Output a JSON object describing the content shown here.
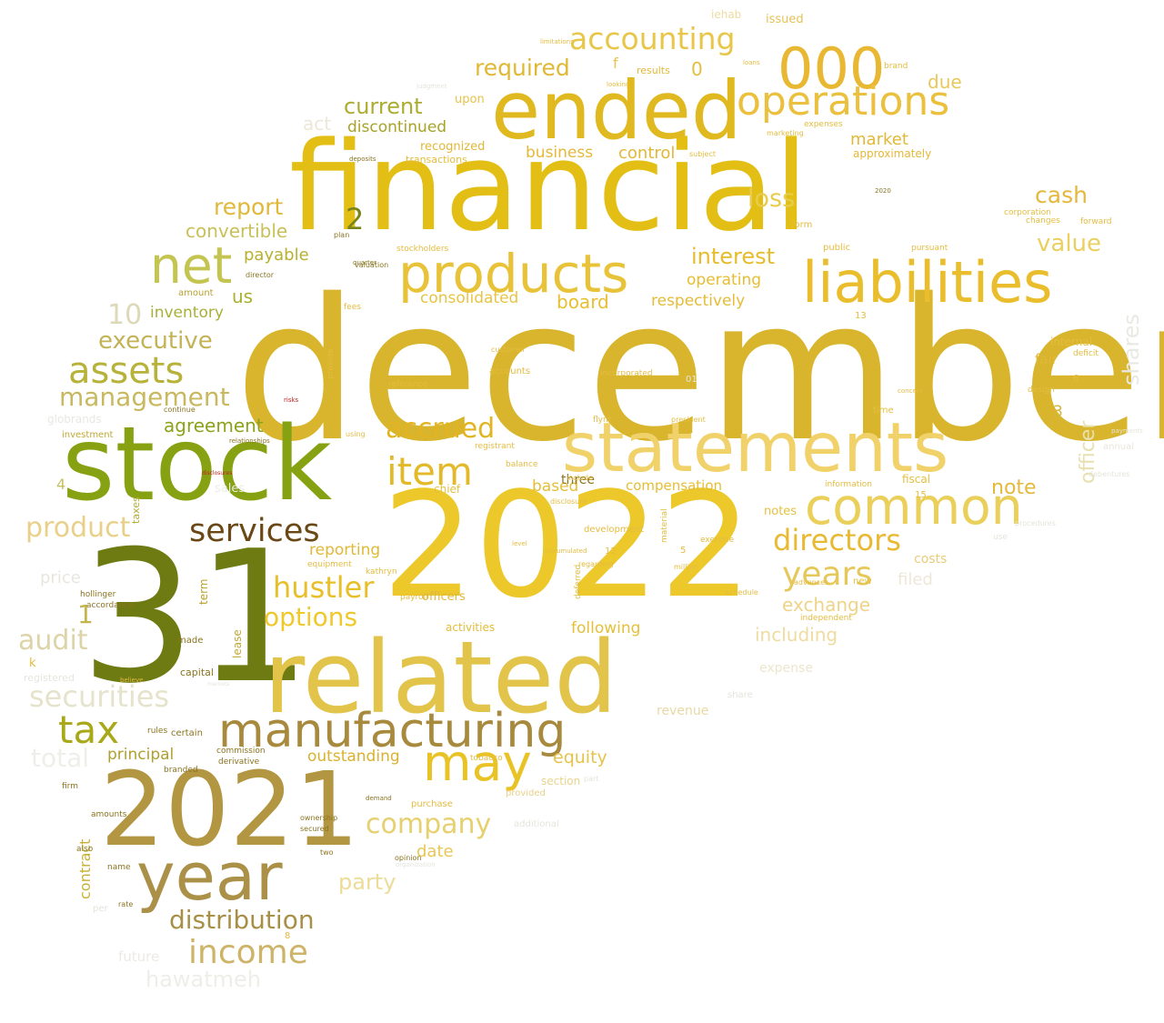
{
  "words": [
    {
      "text": "december",
      "color": "#d8b52c"
    },
    {
      "text": "financial",
      "color": "#e3bf16"
    },
    {
      "text": "2022",
      "color": "#ecc82a"
    },
    {
      "text": "31",
      "color": "#6e7a12"
    },
    {
      "text": "related",
      "color": "#e2c44a"
    },
    {
      "text": "stock",
      "color": "#86a212"
    },
    {
      "text": "2021",
      "color": "#b39642"
    },
    {
      "text": "statements",
      "color": "#f1d26a"
    },
    {
      "text": "ended",
      "color": "#e0b920"
    },
    {
      "text": "manufacturing",
      "color": "#a88a3e"
    },
    {
      "text": "products",
      "color": "#e8c33a"
    },
    {
      "text": "year",
      "color": "#ab9048"
    },
    {
      "text": "liabilities",
      "color": "#eabd2c"
    },
    {
      "text": "common",
      "color": "#ead05a"
    },
    {
      "text": "000",
      "color": "#e9b832"
    },
    {
      "text": "operations",
      "color": "#eac03e"
    },
    {
      "text": "net",
      "color": "#c4c450"
    },
    {
      "text": "accounting",
      "color": "#e8c64a"
    },
    {
      "text": "services",
      "color": "#6a4816"
    },
    {
      "text": "may",
      "color": "#e9c326"
    },
    {
      "text": "assets",
      "color": "#b6b23a"
    },
    {
      "text": "item",
      "color": "#e3b92a"
    },
    {
      "text": "income",
      "color": "#cdb468"
    },
    {
      "text": "tax",
      "color": "#a8a818"
    },
    {
      "text": "directors",
      "color": "#e8b932"
    },
    {
      "text": "years",
      "color": "#e6c85a"
    },
    {
      "text": "hustler",
      "color": "#e8bf28"
    },
    {
      "text": "management",
      "color": "#c8b860"
    },
    {
      "text": "securities",
      "color": "#e6e3cc"
    },
    {
      "text": "distribution",
      "color": "#a88f46"
    },
    {
      "text": "company",
      "color": "#e6d070"
    },
    {
      "text": "options",
      "color": "#efc82a"
    },
    {
      "text": "accrued",
      "color": "#e3b422"
    },
    {
      "text": "product",
      "color": "#e9d08a"
    },
    {
      "text": "audit",
      "color": "#dcd4a8"
    },
    {
      "text": "total",
      "color": "#eeeeea"
    },
    {
      "text": "executive",
      "color": "#c3b256"
    },
    {
      "text": "report",
      "color": "#e0b83a"
    },
    {
      "text": "loss",
      "color": "#e8cc50"
    },
    {
      "text": "cash",
      "color": "#e4b83c"
    },
    {
      "text": "value",
      "color": "#ead060"
    },
    {
      "text": "current",
      "color": "#acac30"
    },
    {
      "text": "required",
      "color": "#e0b834"
    },
    {
      "text": "interest",
      "color": "#e7bc2c"
    },
    {
      "text": "exchange",
      "color": "#eed488"
    },
    {
      "text": "including",
      "color": "#eedca0"
    },
    {
      "text": "party",
      "color": "#ecdc98"
    },
    {
      "text": "hawatmeh",
      "color": "#eeeee8"
    },
    {
      "text": "shares",
      "color": "#e9e9e4"
    },
    {
      "text": "officer",
      "color": "#e8e0b0"
    },
    {
      "text": "note",
      "color": "#e4ba3c"
    },
    {
      "text": "10",
      "color": "#ddd8b8"
    },
    {
      "text": "agreement",
      "color": "#8ca21c"
    },
    {
      "text": "convertible",
      "color": "#c8c058"
    },
    {
      "text": "consolidated",
      "color": "#e8c444"
    },
    {
      "text": "operating",
      "color": "#e7bd30"
    },
    {
      "text": "market",
      "color": "#e2b838"
    },
    {
      "text": "payable",
      "color": "#b8b030"
    },
    {
      "text": "board",
      "color": "#e8bf30"
    },
    {
      "text": "equity",
      "color": "#e6c34c"
    },
    {
      "text": "control",
      "color": "#e0b838"
    },
    {
      "text": "business",
      "color": "#e3b938"
    },
    {
      "text": "discontinued",
      "color": "#a8a228"
    },
    {
      "text": "outstanding",
      "color": "#d8b230"
    },
    {
      "text": "reporting",
      "color": "#e2b838"
    },
    {
      "text": "price",
      "color": "#e8e6dc"
    },
    {
      "text": "respectively",
      "color": "#e4bc38"
    },
    {
      "text": "compensation",
      "color": "#e6bd34"
    },
    {
      "text": "inventory",
      "color": "#a8b038"
    },
    {
      "text": "principal",
      "color": "#b0a030"
    },
    {
      "text": "following",
      "color": "#e4c03a"
    },
    {
      "text": "date",
      "color": "#e8c854"
    },
    {
      "text": "due",
      "color": "#e8c85c"
    },
    {
      "text": "act",
      "color": "#ece8d8"
    },
    {
      "text": "contract",
      "color": "#c8b030"
    },
    {
      "text": "us",
      "color": "#aab02c"
    },
    {
      "text": "filed",
      "color": "#ece8d8"
    },
    {
      "text": "costs",
      "color": "#e8cc78"
    },
    {
      "text": "notes",
      "color": "#e6c040"
    },
    {
      "text": "fair",
      "color": "#e0b838"
    },
    {
      "text": "based",
      "color": "#e4be36"
    },
    {
      "text": "expense",
      "color": "#ece6cc"
    },
    {
      "text": "revenue",
      "color": "#e8d8a4"
    },
    {
      "text": "2",
      "color": "#7a8418"
    },
    {
      "text": "3",
      "color": "#d4b43c"
    },
    {
      "text": "1",
      "color": "#c4b44c"
    },
    {
      "text": "4",
      "color": "#c8c060"
    },
    {
      "text": "0",
      "color": "#e6be3e"
    },
    {
      "text": "f",
      "color": "#e8c44a"
    },
    {
      "text": "recognized",
      "color": "#e0b838"
    },
    {
      "text": "transactions",
      "color": "#e4bc3c"
    },
    {
      "text": "approximately",
      "color": "#e4b838"
    },
    {
      "text": "internal",
      "color": "#e4bc3e"
    },
    {
      "text": "chief",
      "color": "#e4c040"
    },
    {
      "text": "term",
      "color": "#b8a028"
    },
    {
      "text": "lease",
      "color": "#c0a838"
    },
    {
      "text": "taxes",
      "color": "#b4ac30"
    },
    {
      "text": "officers",
      "color": "#e0b83c"
    },
    {
      "text": "activities",
      "color": "#e3bc38"
    },
    {
      "text": "upon",
      "color": "#e6c24a"
    },
    {
      "text": "results",
      "color": "#e4b838"
    },
    {
      "text": "issued",
      "color": "#e4c258"
    },
    {
      "text": "iehab",
      "color": "#eedca0"
    },
    {
      "text": "section",
      "color": "#e8d48a"
    },
    {
      "text": "provided",
      "color": "#e8d088"
    },
    {
      "text": "globrands",
      "color": "#e8e8e2"
    },
    {
      "text": "registered",
      "color": "#e6e6de"
    },
    {
      "text": "sales",
      "color": "#ecece6"
    },
    {
      "text": "future",
      "color": "#eeeae0"
    },
    {
      "text": "annual",
      "color": "#e8e6dc"
    },
    {
      "text": "public",
      "color": "#e4bc40"
    },
    {
      "text": "form",
      "color": "#e4bc40"
    },
    {
      "text": "design",
      "color": "#e4bc40"
    },
    {
      "text": "time",
      "color": "#e4c040"
    },
    {
      "text": "fiscal",
      "color": "#e4c040"
    },
    {
      "text": "new",
      "color": "#e4c040"
    },
    {
      "text": "investment",
      "color": "#c0a838"
    },
    {
      "text": "amount",
      "color": "#b8a030"
    },
    {
      "text": "capital",
      "color": "#8a7420"
    },
    {
      "text": "certain",
      "color": "#8a7420"
    },
    {
      "text": "made",
      "color": "#8a7420"
    },
    {
      "text": "hollinger",
      "color": "#8a7420"
    },
    {
      "text": "accordance",
      "color": "#8a7420"
    },
    {
      "text": "firm",
      "color": "#8a7420"
    },
    {
      "text": "commission",
      "color": "#8a7420"
    },
    {
      "text": "derivative",
      "color": "#8a7420"
    },
    {
      "text": "rules",
      "color": "#8a7420"
    },
    {
      "text": "branded",
      "color": "#8a7420"
    },
    {
      "text": "amounts",
      "color": "#8a7420"
    },
    {
      "text": "name",
      "color": "#8a7420"
    },
    {
      "text": "also",
      "color": "#8a7420"
    },
    {
      "text": "per",
      "color": "#e4e4dc"
    },
    {
      "text": "rate",
      "color": "#8a7420"
    },
    {
      "text": "debentures",
      "color": "#e4e4dc"
    },
    {
      "text": "purchase",
      "color": "#e4bc40"
    },
    {
      "text": "ownership",
      "color": "#8a7420"
    },
    {
      "text": "secured",
      "color": "#8a7420"
    },
    {
      "text": "two",
      "color": "#8a7420"
    },
    {
      "text": "opinion",
      "color": "#8a7420"
    },
    {
      "text": "tobacco",
      "color": "#e4bc40"
    },
    {
      "text": "demand",
      "color": "#8a7420"
    },
    {
      "text": "kathryn",
      "color": "#e4bc40"
    },
    {
      "text": "payroll",
      "color": "#e4bc40"
    },
    {
      "text": "equipment",
      "color": "#e4bc40"
    },
    {
      "text": "regarding",
      "color": "#e4bc40"
    },
    {
      "text": "schedule",
      "color": "#e4bc40"
    },
    {
      "text": "independent",
      "color": "#e4bc40"
    },
    {
      "text": "advances",
      "color": "#e4bc40"
    },
    {
      "text": "exercise",
      "color": "#e4bc40"
    },
    {
      "text": "million",
      "color": "#e4bc40"
    },
    {
      "text": "development",
      "color": "#e4bc40"
    },
    {
      "text": "deferred",
      "color": "#e4bc40"
    },
    {
      "text": "material",
      "color": "#e4bc40"
    },
    {
      "text": "disclosure",
      "color": "#e4bc40"
    },
    {
      "text": "flynt",
      "color": "#e4bc40"
    },
    {
      "text": "president",
      "color": "#e4bc40"
    },
    {
      "text": "information",
      "color": "#e4bc40"
    },
    {
      "text": "concern",
      "color": "#e4bc40"
    },
    {
      "text": "registrant",
      "color": "#e4bc40"
    },
    {
      "text": "balance",
      "color": "#e4bc40"
    },
    {
      "text": "accounts",
      "color": "#e4bc40"
    },
    {
      "text": "reference",
      "color": "#e4bc40"
    },
    {
      "text": "incorporated",
      "color": "#e4bc40"
    },
    {
      "text": "customer",
      "color": "#e4bc40"
    },
    {
      "text": "provide",
      "color": "#e4bc40"
    },
    {
      "text": "using",
      "color": "#e4bc40"
    },
    {
      "text": "fees",
      "color": "#e4bc40"
    },
    {
      "text": "director",
      "color": "#8a7420"
    },
    {
      "text": "valuation",
      "color": "#8a7420"
    },
    {
      "text": "stockholders",
      "color": "#e4bc40"
    },
    {
      "text": "pursuant",
      "color": "#e4bc40"
    },
    {
      "text": "corporation",
      "color": "#e4bc40"
    },
    {
      "text": "changes",
      "color": "#e4bc40"
    },
    {
      "text": "forward",
      "color": "#e4bc40"
    },
    {
      "text": "deficit",
      "color": "#e4bc40"
    },
    {
      "text": "expenses",
      "color": "#e4bc40"
    },
    {
      "text": "marketing",
      "color": "#e4bc40"
    },
    {
      "text": "subject",
      "color": "#e4bc40"
    },
    {
      "text": "brand",
      "color": "#e4bc40"
    },
    {
      "text": "loans",
      "color": "#e4bc40"
    },
    {
      "text": "looking",
      "color": "#e4bc40"
    },
    {
      "text": "plan",
      "color": "#8a7420"
    },
    {
      "text": "quarter",
      "color": "#8a7420"
    },
    {
      "text": "deposits",
      "color": "#8a7420"
    },
    {
      "text": "continue",
      "color": "#8a7420"
    },
    {
      "text": "relationships",
      "color": "#8a7420"
    },
    {
      "text": "risks",
      "color": "#c02020"
    },
    {
      "text": "disclosures",
      "color": "#c02020"
    },
    {
      "text": "markets",
      "color": "#e4e4dc"
    },
    {
      "text": "payments",
      "color": "#e4e4dc"
    },
    {
      "text": "procedures",
      "color": "#e4e4dc"
    },
    {
      "text": "use",
      "color": "#e4e4dc"
    },
    {
      "text": "share",
      "color": "#e4e4dc"
    },
    {
      "text": "part",
      "color": "#e4e4dc"
    },
    {
      "text": "additional",
      "color": "#e4e4dc"
    },
    {
      "text": "8",
      "color": "#e4bc40"
    },
    {
      "text": "6",
      "color": "#e4bc40"
    },
    {
      "text": "15",
      "color": "#e4bc40"
    },
    {
      "text": "13",
      "color": "#e4bc40"
    },
    {
      "text": "12",
      "color": "#e4bc40"
    },
    {
      "text": "01",
      "color": "#e4e4dc"
    },
    {
      "text": "k",
      "color": "#e4bc40"
    },
    {
      "text": "5",
      "color": "#e4bc40"
    },
    {
      "text": "three",
      "color": "#8a7420"
    },
    {
      "text": "believe",
      "color": "#e4bc40"
    },
    {
      "text": "include",
      "color": "#e4bc40"
    },
    {
      "text": "accumulated",
      "color": "#e4bc40"
    },
    {
      "text": "level",
      "color": "#e4bc40"
    },
    {
      "text": "2020",
      "color": "#8a7420"
    },
    {
      "text": "organization",
      "color": "#e4e4dc"
    },
    {
      "text": "judgment",
      "color": "#e4e4dc"
    },
    {
      "text": "limitations",
      "color": "#e4bc40"
    }
  ]
}
